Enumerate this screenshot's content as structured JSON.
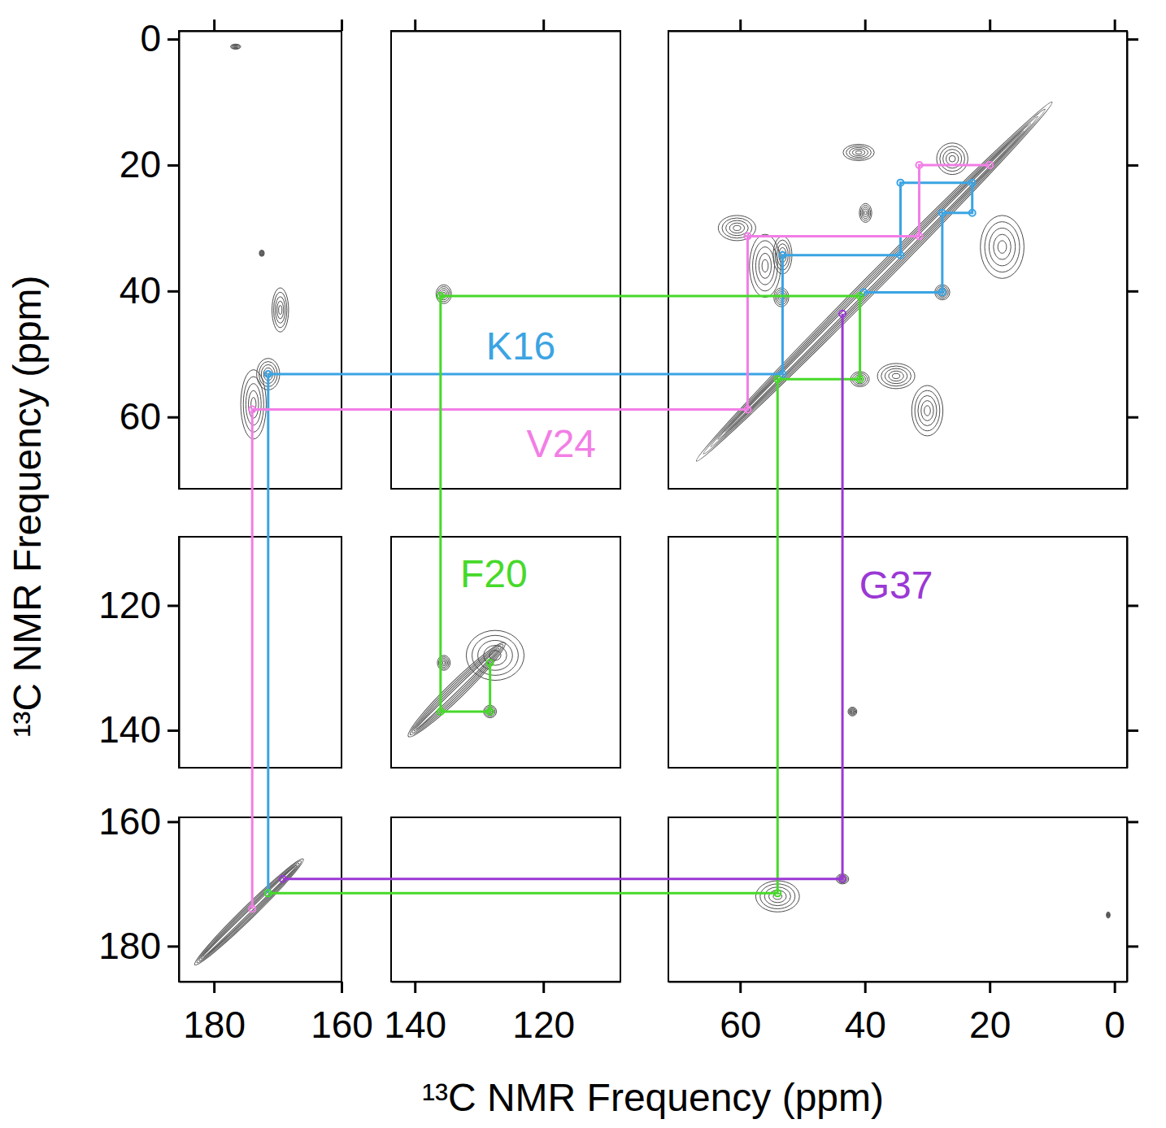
{
  "chart_data": {
    "type": "contour",
    "xlabel": "¹³C NMR Frequency (ppm)",
    "ylabel": "¹³C NMR Frequency (ppm)",
    "x_segments": [
      {
        "xlim": [
          185.5,
          160
        ],
        "xticks": [
          180,
          160
        ]
      },
      {
        "xlim": [
          143.7,
          108
        ],
        "xticks": [
          140,
          120
        ]
      },
      {
        "xlim": [
          71.5,
          -2
        ],
        "xticks": [
          60,
          40,
          20,
          0
        ]
      }
    ],
    "y_segments": [
      {
        "ylim": [
          -1.3,
          71.4
        ],
        "yticks": [
          0,
          20,
          40,
          60
        ]
      },
      {
        "ylim": [
          109,
          146
        ],
        "yticks": [
          120,
          140
        ]
      },
      {
        "ylim": [
          159.3,
          185.7
        ],
        "yticks": [
          160,
          180
        ]
      }
    ],
    "diagonal": [
      {
        "from": 67,
        "to": 10,
        "width": 1.3
      },
      {
        "from": 141,
        "to": 126,
        "width": 1.3
      },
      {
        "from": 183,
        "to": 166,
        "width": 1.0
      }
    ],
    "peaks": [
      {
        "x": 176.6,
        "y": 1.2,
        "wx": 0.8,
        "wy": 0.4
      },
      {
        "x": 172.5,
        "y": 34,
        "wx": 0.4,
        "wy": 0.5
      },
      {
        "x": 169.6,
        "y": 43,
        "wx": 1.3,
        "wy": 3.5
      },
      {
        "x": 173.8,
        "y": 58,
        "wx": 2.0,
        "wy": 5.5
      },
      {
        "x": 171.5,
        "y": 53.2,
        "wx": 1.8,
        "wy": 2.5
      },
      {
        "x": 135.5,
        "y": 40.5,
        "wx": 1.2,
        "wy": 1.5
      },
      {
        "x": 53.2,
        "y": 34.3,
        "wx": 1.5,
        "wy": 3
      },
      {
        "x": 53.4,
        "y": 41,
        "wx": 1.2,
        "wy": 1.5
      },
      {
        "x": 56,
        "y": 36,
        "wx": 2.5,
        "wy": 5
      },
      {
        "x": 60.5,
        "y": 30,
        "wx": 3,
        "wy": 2
      },
      {
        "x": 39.9,
        "y": 27.6,
        "wx": 1.0,
        "wy": 1.5
      },
      {
        "x": 27.6,
        "y": 40.2,
        "wx": 1.2,
        "wy": 1.2
      },
      {
        "x": 40.8,
        "y": 54,
        "wx": 1.5,
        "wy": 1.2
      },
      {
        "x": 35,
        "y": 53.5,
        "wx": 3,
        "wy": 2
      },
      {
        "x": 30,
        "y": 59,
        "wx": 2.5,
        "wy": 4
      },
      {
        "x": 18,
        "y": 33,
        "wx": 3.5,
        "wy": 5
      },
      {
        "x": 26,
        "y": 19,
        "wx": 2.5,
        "wy": 2.5
      },
      {
        "x": 41,
        "y": 18,
        "wx": 2.5,
        "wy": 1.3
      },
      {
        "x": 135.5,
        "y": 129.2,
        "wx": 1.0,
        "wy": 1.2
      },
      {
        "x": 127.5,
        "y": 128,
        "wx": 4.5,
        "wy": 4
      },
      {
        "x": 128.3,
        "y": 137,
        "wx": 1.0,
        "wy": 1.0
      },
      {
        "x": 42,
        "y": 137,
        "wx": 0.7,
        "wy": 0.7
      },
      {
        "x": 54,
        "y": 172,
        "wx": 3.5,
        "wy": 2.5
      },
      {
        "x": 43.6,
        "y": 169.2,
        "wx": 1.0,
        "wy": 0.8
      },
      {
        "x": 1,
        "y": 175,
        "wx": 0.3,
        "wy": 0.5
      }
    ],
    "series": [
      {
        "name": "K16",
        "color": "#3ba4e3",
        "x": [
          171.5,
          171.5,
          53.2,
          53.2,
          34.3,
          34.3,
          22.8,
          22.8,
          27.6,
          27.6,
          40.2
        ],
        "y": [
          171.5,
          53.2,
          53.2,
          34.3,
          34.3,
          22.8,
          22.8,
          27.6,
          27.6,
          40.2,
          40.2
        ],
        "label_at": [
          123.5,
          48.7
        ]
      },
      {
        "name": "V24",
        "color": "#f27ee6",
        "x": [
          174,
          174,
          58.8,
          58.8,
          31.3,
          31.3,
          20
        ],
        "y": [
          174,
          58.8,
          58.8,
          31.3,
          31.3,
          20,
          20
        ],
        "label_at": [
          117.2,
          64.2
        ]
      },
      {
        "name": "F20",
        "color": "#47d92a",
        "x": [
          171.5,
          54,
          54,
          40.8,
          40.8,
          136,
          136,
          128.3,
          128.3
        ],
        "y": [
          171.5,
          171.5,
          54,
          54,
          40.8,
          40.8,
          137,
          137,
          129.2
        ],
        "label_at": [
          127.7,
          114.9
        ]
      },
      {
        "name": "G37",
        "color": "#9b38d4",
        "x": [
          169.2,
          43.6,
          43.6
        ],
        "y": [
          169.2,
          169.2,
          43.6
        ],
        "label_at": [
          35,
          116.8
        ]
      }
    ]
  }
}
